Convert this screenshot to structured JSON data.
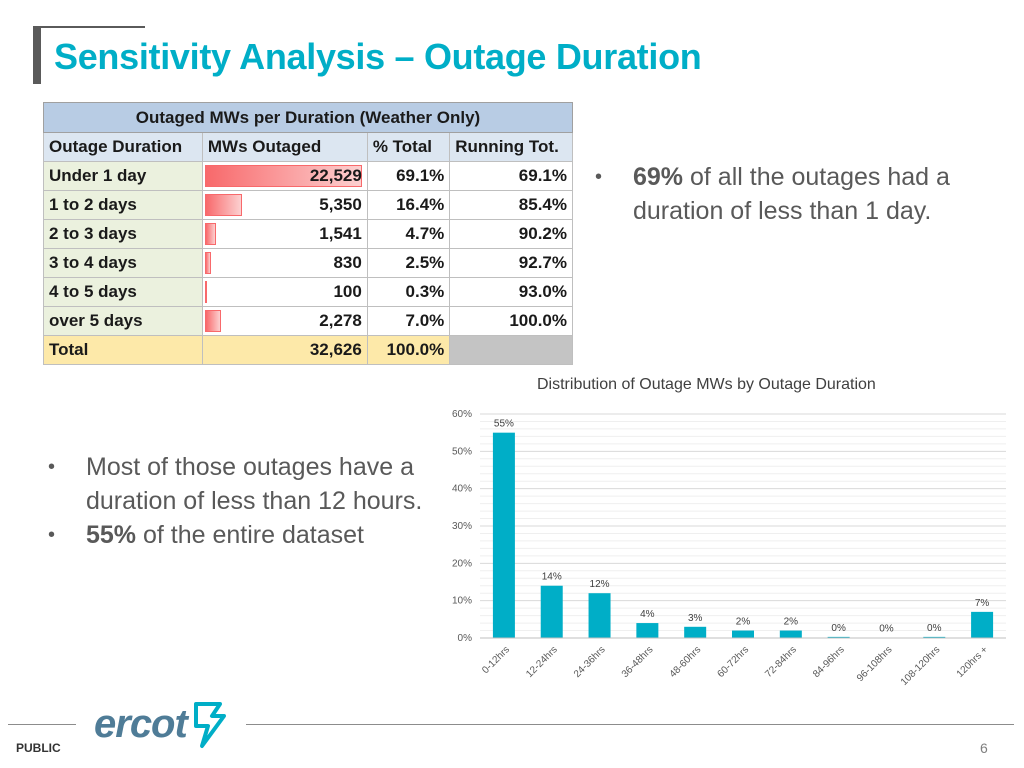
{
  "title": "Sensitivity Analysis – Outage Duration",
  "table": {
    "caption": "Outaged MWs per Duration (Weather Only)",
    "headers": [
      "Outage Duration",
      "MWs Outaged",
      "% Total",
      "Running Tot."
    ],
    "rows": [
      {
        "label": "Under 1 day",
        "mw": "22,529",
        "mw_value": 22529,
        "pct": "69.1%",
        "running": "69.1%"
      },
      {
        "label": "1 to 2 days",
        "mw": "5,350",
        "mw_value": 5350,
        "pct": "16.4%",
        "running": "85.4%"
      },
      {
        "label": "2 to 3 days",
        "mw": "1,541",
        "mw_value": 1541,
        "pct": "4.7%",
        "running": "90.2%"
      },
      {
        "label": "3 to 4 days",
        "mw": "830",
        "mw_value": 830,
        "pct": "2.5%",
        "running": "92.7%"
      },
      {
        "label": "4 to 5 days",
        "mw": "100",
        "mw_value": 100,
        "pct": "0.3%",
        "running": "93.0%"
      },
      {
        "label": "over 5 days",
        "mw": "2,278",
        "mw_value": 2278,
        "pct": "7.0%",
        "running": "100.0%"
      }
    ],
    "total": {
      "label": "Total",
      "mw": "32,626",
      "pct": "100.0%"
    }
  },
  "bullet_top": {
    "bold": "69%",
    "text": " of all the outages had a duration of less than 1 day."
  },
  "bullets_left": [
    {
      "bold": "",
      "text": "Most of those outages have a duration of less than 12 hours."
    },
    {
      "bold": "55%",
      "text": " of the entire dataset"
    }
  ],
  "chart_data": {
    "type": "bar",
    "title": "Distribution of Outage MWs by Outage Duration",
    "categories": [
      "0-12hrs",
      "12-24hrs",
      "24-36hrs",
      "36-48hrs",
      "48-60hrs",
      "60-72hrs",
      "72-84hrs",
      "84-96hrs",
      "96-108hrs",
      "108-120hrs",
      "120hrs +"
    ],
    "values": [
      55,
      14,
      12,
      4,
      3,
      2,
      2,
      0.3,
      0.1,
      0.3,
      7
    ],
    "data_labels": [
      "55%",
      "14%",
      "12%",
      "4%",
      "3%",
      "2%",
      "2%",
      "0%",
      "0%",
      "0%",
      "7%"
    ],
    "ylim": [
      0,
      60
    ],
    "yticks": [
      "0%",
      "10%",
      "20%",
      "30%",
      "40%",
      "50%",
      "60%"
    ],
    "grid": true,
    "bar_color": "#00aec7"
  },
  "footer": {
    "public": "PUBLIC",
    "logo": "ercot",
    "page": "6"
  }
}
